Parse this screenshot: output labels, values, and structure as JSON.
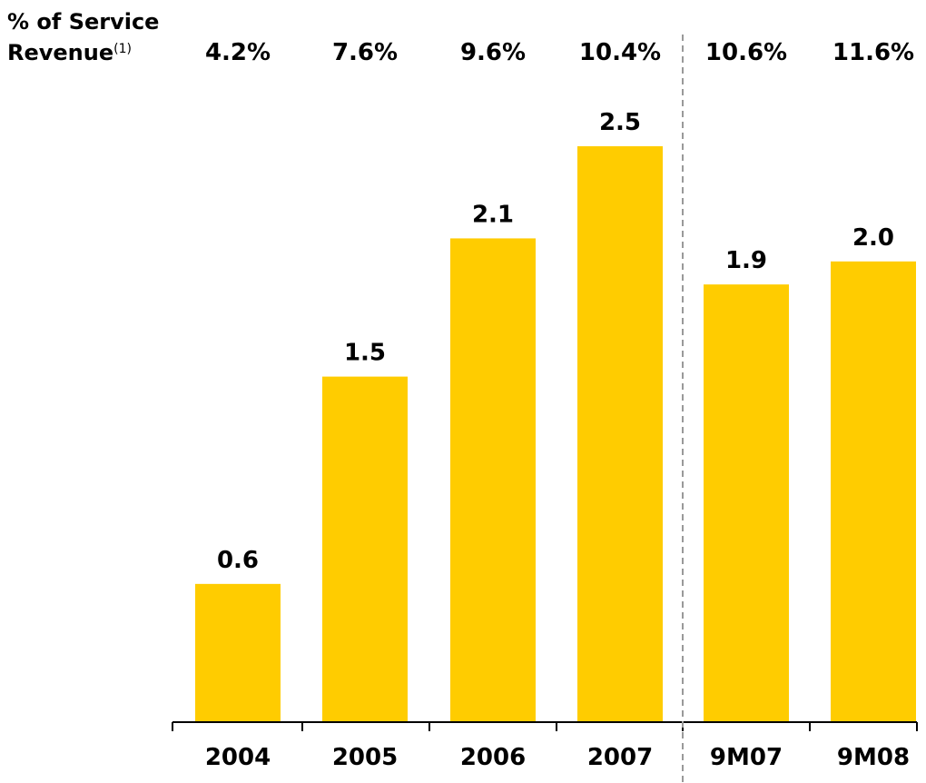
{
  "chart_data": {
    "type": "bar",
    "categories": [
      "2004",
      "2005",
      "2006",
      "2007",
      "9M07",
      "9M08"
    ],
    "values": [
      0.6,
      1.5,
      2.1,
      2.5,
      1.9,
      2.0
    ],
    "value_labels": [
      "0.6",
      "1.5",
      "2.1",
      "2.5",
      "1.9",
      "2.0"
    ],
    "top_row": {
      "label_line1": "% of Service",
      "label_line2": "Revenue",
      "label_footnote": "(1)",
      "values": [
        "4.2%",
        "7.6%",
        "9.6%",
        "10.4%",
        "10.6%",
        "11.6%"
      ]
    },
    "divider_after_category": "2007",
    "bar_color": "#FFCC00",
    "divider_color": "#999999",
    "ylim": [
      0,
      2.5
    ],
    "grid": false,
    "legend": "none",
    "title": "",
    "xlabel": "",
    "ylabel": ""
  }
}
